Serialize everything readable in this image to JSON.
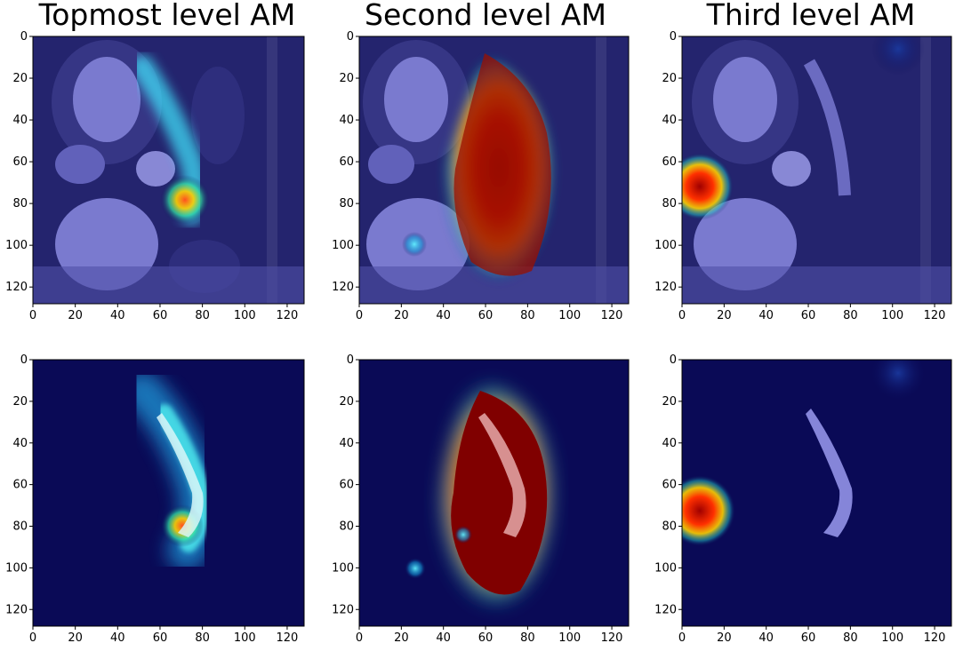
{
  "figure": {
    "column_titles": [
      "Topmost level AM",
      "Second level AM",
      "Third level AM"
    ],
    "rows": [
      "overlay-on-ct",
      "heatmap-with-mask"
    ],
    "image_size": 128,
    "colormap": "jet",
    "base_color": "#0a0a56"
  },
  "axis": {
    "ticks": [
      0,
      20,
      40,
      60,
      80,
      100,
      120
    ],
    "xlim": [
      0,
      128
    ],
    "ylim": [
      128,
      0
    ]
  },
  "panels": [
    {
      "row": 0,
      "col": 0,
      "title": "Topmost level AM",
      "content": "ct-overlay"
    },
    {
      "row": 0,
      "col": 1,
      "title": "Second level AM",
      "content": "ct-overlay"
    },
    {
      "row": 0,
      "col": 2,
      "title": "Third level AM",
      "content": "ct-overlay"
    },
    {
      "row": 1,
      "col": 0,
      "content": "heatmap"
    },
    {
      "row": 1,
      "col": 1,
      "content": "heatmap"
    },
    {
      "row": 1,
      "col": 2,
      "content": "heatmap"
    }
  ]
}
